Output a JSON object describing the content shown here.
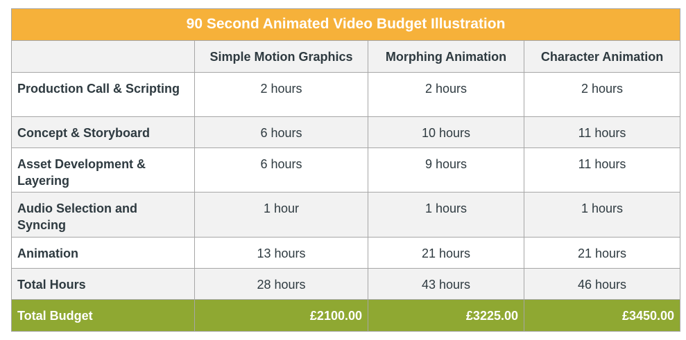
{
  "title": "90 Second Animated Video Budget Illustration",
  "columns": [
    "",
    "Simple Motion Graphics",
    "Morphing Animation",
    "Character Animation"
  ],
  "rows": [
    {
      "label": "Production Call & Scripting",
      "values": [
        "2 hours",
        "2 hours",
        "2 hours"
      ]
    },
    {
      "label": "Concept & Storyboard",
      "values": [
        "6 hours",
        "10 hours",
        "11 hours"
      ]
    },
    {
      "label": "Asset Development & Layering",
      "values": [
        "6 hours",
        "9 hours",
        "11 hours"
      ]
    },
    {
      "label": "Audio Selection and Syncing",
      "values": [
        "1 hour",
        "1 hours",
        "1 hours"
      ]
    },
    {
      "label": "Animation",
      "values": [
        "13 hours",
        "21 hours",
        "21 hours"
      ]
    },
    {
      "label": "Total Hours",
      "values": [
        "28 hours",
        "43 hours",
        "46 hours"
      ]
    }
  ],
  "total": {
    "label": "Total Budget",
    "values": [
      "£2100.00",
      "£3225.00",
      "£3450.00"
    ]
  },
  "colors": {
    "title_bg": "#f6b13a",
    "total_bg": "#8fa832",
    "stripe": "#f2f2f2",
    "text": "#2e3a40"
  }
}
